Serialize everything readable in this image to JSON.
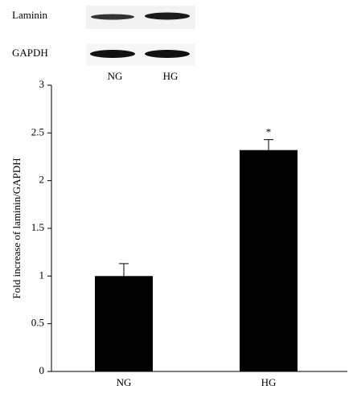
{
  "chart_data": {
    "type": "bar",
    "blot": {
      "rows": [
        "Laminin",
        "GAPDH"
      ],
      "lanes": [
        "NG",
        "HG"
      ]
    },
    "y_label": "Fold increase of laminin/GAPDH",
    "categories": [
      "NG",
      "HG"
    ],
    "values": [
      1.0,
      2.32
    ],
    "errors": [
      0.13,
      0.11
    ],
    "color": "#000000",
    "ylim": [
      0,
      3
    ],
    "yticks": [
      0,
      0.5,
      1,
      1.5,
      2,
      2.5,
      3
    ],
    "annotations": [
      {
        "text": "*",
        "category": "HG"
      }
    ]
  }
}
